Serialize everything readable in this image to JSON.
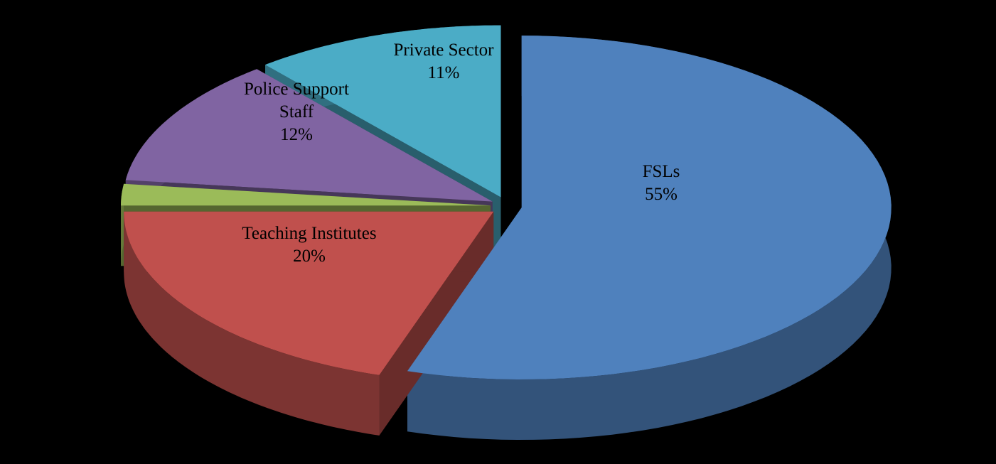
{
  "chart_data": {
    "type": "pie3d",
    "categories": [
      "FSLs",
      "Teaching Institutes",
      null,
      "Police Support Staff",
      "Private Sector"
    ],
    "values": [
      55,
      20,
      2,
      12,
      11
    ],
    "value_labels": [
      "55%",
      "20%",
      null,
      "12%",
      "11%"
    ],
    "colors": [
      "#4f81bd",
      "#c0504d",
      "#9bbb59",
      "#8064a2",
      "#4bacc6"
    ]
  }
}
